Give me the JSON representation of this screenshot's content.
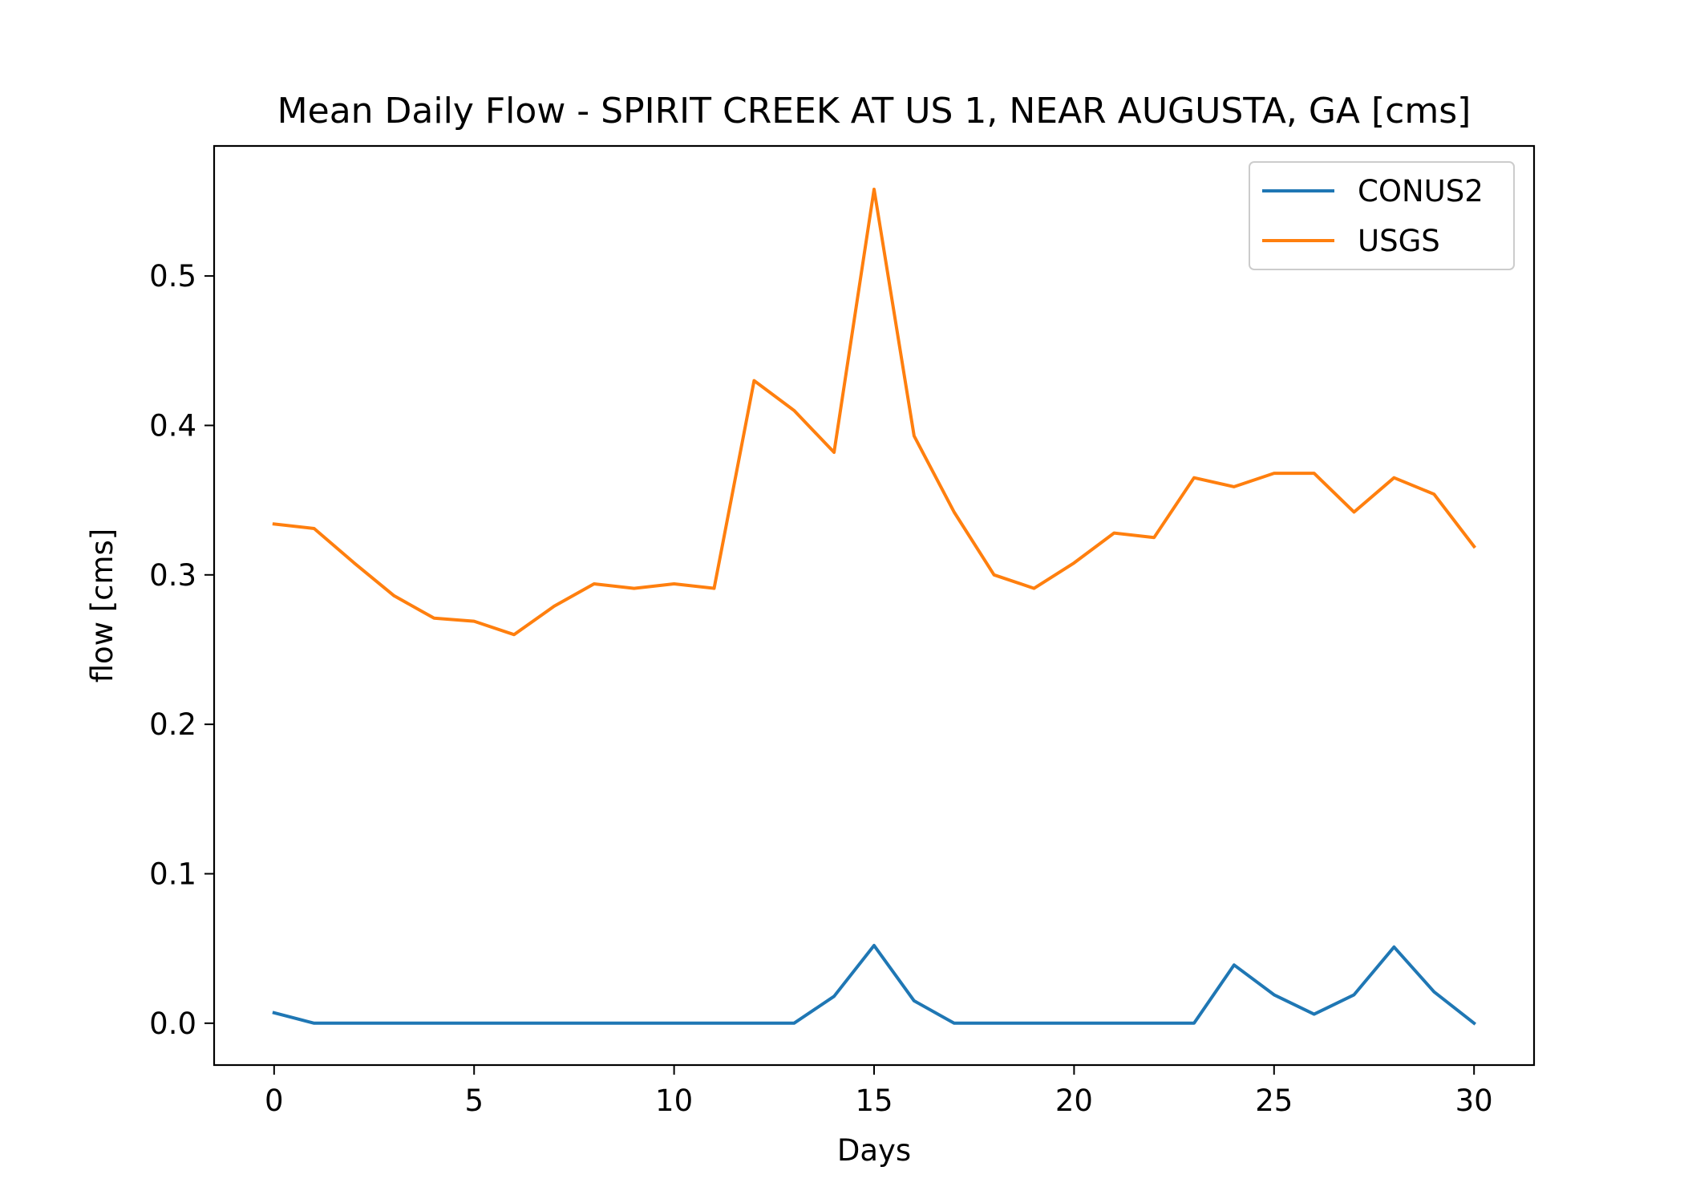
{
  "chart_data": {
    "type": "line",
    "title": "Mean Daily Flow - SPIRIT CREEK AT US 1, NEAR AUGUSTA, GA [cms]",
    "xlabel": "Days",
    "ylabel": "flow [cms]",
    "xlim": [
      -1.5,
      31.5
    ],
    "ylim": [
      -0.028,
      0.587
    ],
    "xticks": [
      0,
      5,
      10,
      15,
      20,
      25,
      30
    ],
    "yticks": [
      0.0,
      0.1,
      0.2,
      0.3,
      0.4,
      0.5
    ],
    "ytick_labels": [
      "0.0",
      "0.1",
      "0.2",
      "0.3",
      "0.4",
      "0.5"
    ],
    "grid": false,
    "legend_position": "top-right",
    "x": [
      0,
      1,
      2,
      3,
      4,
      5,
      6,
      7,
      8,
      9,
      10,
      11,
      12,
      13,
      14,
      15,
      16,
      17,
      18,
      19,
      20,
      21,
      22,
      23,
      24,
      25,
      26,
      27,
      28,
      29,
      30
    ],
    "series": [
      {
        "name": "CONUS2",
        "color": "#1f77b4",
        "values": [
          0.007,
          0.0,
          0.0,
          0.0,
          0.0,
          0.0,
          0.0,
          0.0,
          0.0,
          0.0,
          0.0,
          0.0,
          0.0,
          0.0,
          0.018,
          0.052,
          0.015,
          0.0,
          0.0,
          0.0,
          0.0,
          0.0,
          0.0,
          0.0,
          0.039,
          0.019,
          0.006,
          0.019,
          0.051,
          0.021,
          0.0
        ]
      },
      {
        "name": "USGS",
        "color": "#ff7f0e",
        "values": [
          0.334,
          0.331,
          0.308,
          0.286,
          0.271,
          0.269,
          0.26,
          0.279,
          0.294,
          0.291,
          0.294,
          0.291,
          0.43,
          0.41,
          0.382,
          0.558,
          0.393,
          0.342,
          0.3,
          0.291,
          0.308,
          0.328,
          0.325,
          0.365,
          0.359,
          0.368,
          0.368,
          0.342,
          0.365,
          0.354,
          0.319
        ]
      }
    ]
  }
}
